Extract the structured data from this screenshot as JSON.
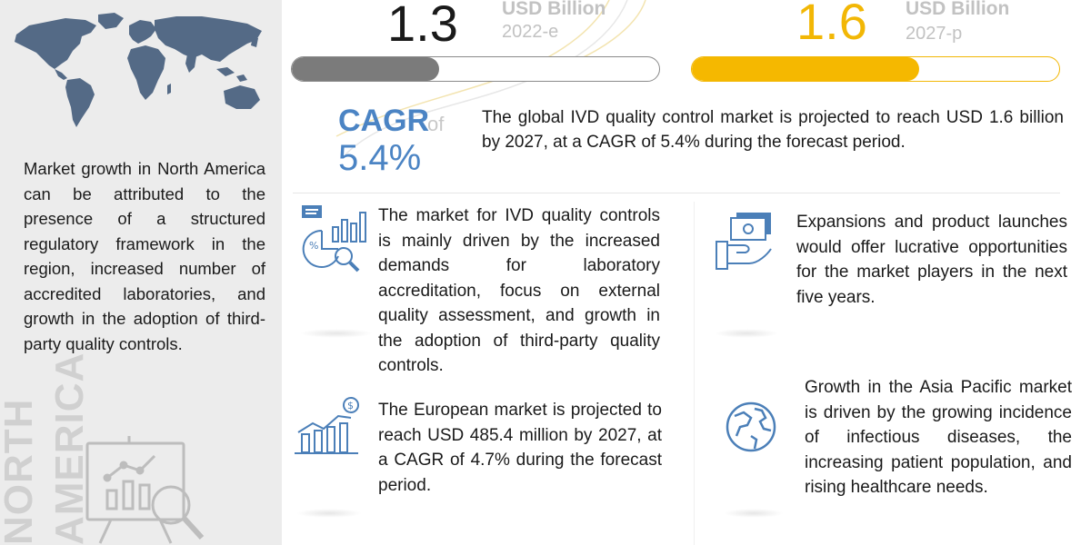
{
  "left_panel": {
    "description": "Market growth in North America can be attributed to the presence of a structured regulatory framework in the region, increased number of accredited laboratories, and growth in the adoption of third-party quality controls.",
    "region_line1": "NORTH",
    "region_line2": "AMERICA",
    "map_icon": "world-map-icon",
    "board_icon": "presentation-board-icon"
  },
  "values": {
    "current": {
      "value": "1.3",
      "unit": "USD Billion",
      "year": "2022-e",
      "progress": 0.4,
      "color": "#7b7b7b"
    },
    "projected": {
      "value": "1.6",
      "unit": "USD Billion",
      "year": "2027-p",
      "progress": 0.62,
      "color": "#f5b800"
    }
  },
  "cagr": {
    "label": "CAGR",
    "of": "of",
    "value": "5.4%",
    "color": "#4b84c4",
    "summary": "The global IVD quality control market is projected to reach USD 1.6 billion by 2027, at a CAGR of 5.4% during the forecast period."
  },
  "insights": {
    "drivers": {
      "icon": "analytics-magnifier-icon",
      "text": "The market for IVD quality controls is mainly driven by the increased demands for laboratory accreditation, focus on external quality assessment, and growth in the adoption of third-party quality controls."
    },
    "europe": {
      "icon": "growth-chart-dollar-icon",
      "text": "The European market is projected to reach USD 485.4 million by 2027, at a CAGR of 4.7% during the forecast period."
    },
    "expansions": {
      "icon": "money-hand-icon",
      "text": "Expansions and product launches would offer lucrative opportunities for the market players in the next five years."
    },
    "apac": {
      "icon": "globe-icon",
      "text": "Growth in the Asia Pacific market is driven by the growing incidence of infectious diseases, the increasing patient population, and rising healthcare needs."
    }
  }
}
